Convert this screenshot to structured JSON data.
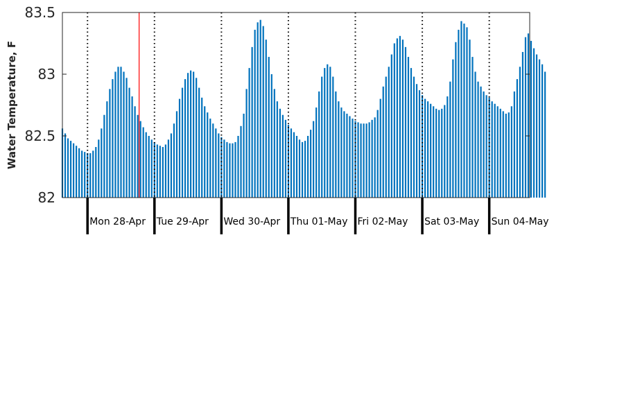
{
  "chart_data": {
    "type": "bar",
    "title": "",
    "xlabel": "",
    "ylabel": "Water Temperature, F",
    "ylim": [
      82,
      83.5
    ],
    "yticks": [
      82,
      82.5,
      83,
      83.5
    ],
    "ytick_labels": [
      "82",
      "82.5",
      "83",
      "83.5"
    ],
    "x_unit": "hours from Mon 28-Apr 00:00",
    "xlim": [
      -9,
      158.5
    ],
    "day_boundaries": [
      0,
      24,
      48,
      72,
      96,
      120,
      144
    ],
    "day_labels": [
      "Mon 28-Apr",
      "Tue 29-Apr",
      "Wed 30-Apr",
      "Thu 01-May",
      "Fri 02-May",
      "Sat 03-May",
      "Sun 04-May"
    ],
    "current_time_marker": 18.5,
    "grid": false,
    "colors": {
      "bars": "#0072BD",
      "marker": "#FF0000",
      "day_line": "#000000",
      "tick_text": "#262626"
    },
    "series": [
      {
        "x_start": -9,
        "x_step": 1,
        "values": [
          82.56,
          82.52,
          82.48,
          82.46,
          82.44,
          82.42,
          82.4,
          82.38,
          82.37,
          82.36,
          82.36,
          82.38,
          82.41,
          82.47,
          82.56,
          82.67,
          82.78,
          82.88,
          82.96,
          83.02,
          83.06,
          83.06,
          83.02,
          82.97,
          82.89,
          82.82,
          82.74,
          82.67,
          82.62,
          82.57,
          82.53,
          82.5,
          82.47,
          82.45,
          82.43,
          82.42,
          82.41,
          82.43,
          82.47,
          82.52,
          82.6,
          82.7,
          82.8,
          82.89,
          82.96,
          83.01,
          83.03,
          83.02,
          82.97,
          82.89,
          82.81,
          82.74,
          82.69,
          82.64,
          82.6,
          82.56,
          82.52,
          82.49,
          82.47,
          82.45,
          82.44,
          82.44,
          82.45,
          82.5,
          82.58,
          82.68,
          82.88,
          83.05,
          83.22,
          83.36,
          83.42,
          83.44,
          83.39,
          83.28,
          83.14,
          83.0,
          82.88,
          82.78,
          82.72,
          82.67,
          82.63,
          82.59,
          82.56,
          82.53,
          82.5,
          82.47,
          82.45,
          82.46,
          82.5,
          82.55,
          82.62,
          82.73,
          82.86,
          82.98,
          83.05,
          83.08,
          83.06,
          82.98,
          82.86,
          82.78,
          82.73,
          82.7,
          82.68,
          82.66,
          82.64,
          82.62,
          82.61,
          82.6,
          82.6,
          82.6,
          82.61,
          82.63,
          82.65,
          82.71,
          82.8,
          82.9,
          82.98,
          83.06,
          83.16,
          83.25,
          83.29,
          83.31,
          83.28,
          83.22,
          83.14,
          83.05,
          82.98,
          82.92,
          82.87,
          82.83,
          82.8,
          82.78,
          82.76,
          82.74,
          82.72,
          82.71,
          82.72,
          82.75,
          82.82,
          82.94,
          83.12,
          83.26,
          83.36,
          83.43,
          83.41,
          83.38,
          83.28,
          83.14,
          83.02,
          82.94,
          82.9,
          82.86,
          82.83,
          82.81,
          82.78,
          82.76,
          82.74,
          82.72,
          82.7,
          82.68,
          82.69,
          82.74,
          82.86,
          82.96,
          83.06,
          83.18,
          83.3,
          83.33,
          83.27,
          83.21,
          83.16,
          83.12,
          83.08,
          83.02
        ]
      }
    ]
  }
}
